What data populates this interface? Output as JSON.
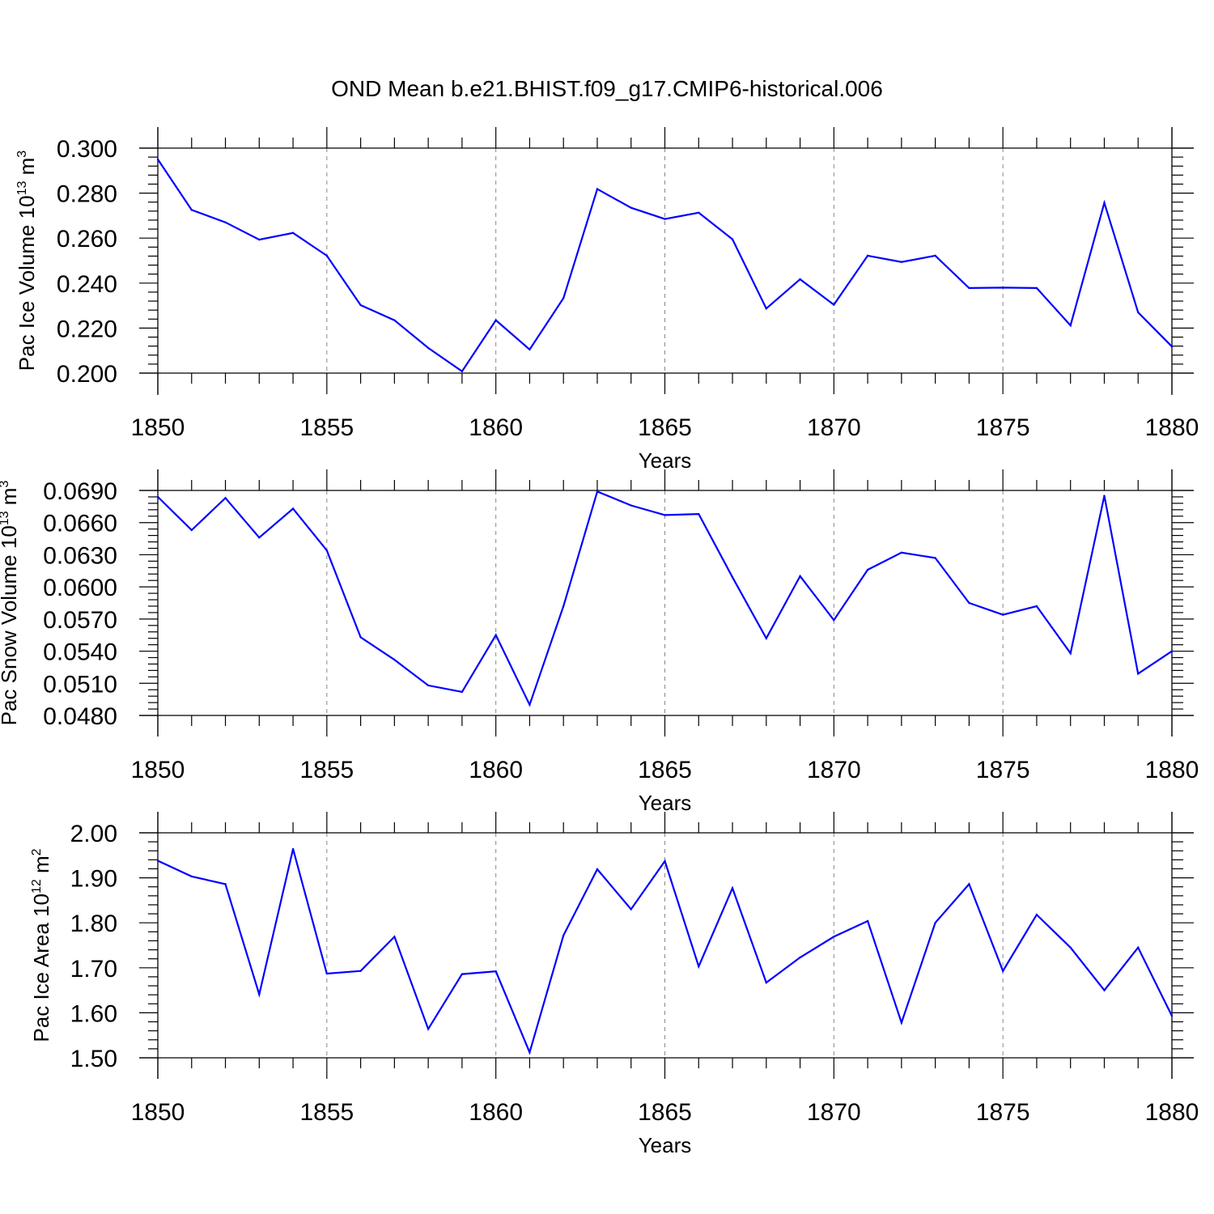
{
  "title": "OND Mean b.e21.BHIST.f09_g17.CMIP6-historical.006",
  "chart_data": [
    {
      "type": "line",
      "title": "OND Mean b.e21.BHIST.f09_g17.CMIP6-historical.006",
      "ylabel": "Pac Ice Volume 10",
      "ylabel_exp": "13",
      "ylabel_unit": " m",
      "ylabel_unit_exp": "3",
      "xlabel": "Years",
      "xlim": [
        1850,
        1880
      ],
      "ylim": [
        0.2,
        0.3
      ],
      "yticks": [
        "0.300",
        "0.280",
        "0.260",
        "0.240",
        "0.220",
        "0.200"
      ],
      "ytick_values": [
        0.3,
        0.28,
        0.26,
        0.24,
        0.22,
        0.2
      ],
      "xticks": [
        "1850",
        "1855",
        "1860",
        "1865",
        "1870",
        "1875",
        "1880"
      ],
      "xtick_values": [
        1850,
        1855,
        1860,
        1865,
        1870,
        1875,
        1880
      ],
      "color": "#0000ff",
      "x": [
        1850,
        1851,
        1852,
        1853,
        1854,
        1855,
        1856,
        1857,
        1858,
        1859,
        1860,
        1861,
        1862,
        1863,
        1864,
        1865,
        1866,
        1867,
        1868,
        1869,
        1870,
        1871,
        1872,
        1873,
        1874,
        1875,
        1876,
        1877,
        1878,
        1879,
        1880
      ],
      "values": [
        0.295,
        0.2725,
        0.267,
        0.2593,
        0.2623,
        0.2522,
        0.2302,
        0.2235,
        0.2112,
        0.2008,
        0.2235,
        0.2105,
        0.2333,
        0.2818,
        0.2735,
        0.2685,
        0.2713,
        0.2595,
        0.2287,
        0.2417,
        0.2304,
        0.2522,
        0.2494,
        0.2522,
        0.2378,
        0.238,
        0.2378,
        0.2212,
        0.2757,
        0.227,
        0.2118
      ]
    },
    {
      "type": "line",
      "ylabel": "Pac Snow Volume 10",
      "ylabel_exp": "13",
      "ylabel_unit": " m",
      "ylabel_unit_exp": "3",
      "xlabel": "Years",
      "xlim": [
        1850,
        1880
      ],
      "ylim": [
        0.048,
        0.069
      ],
      "yticks": [
        "0.0690",
        "0.0660",
        "0.0630",
        "0.0600",
        "0.0570",
        "0.0540",
        "0.0510",
        "0.0480"
      ],
      "ytick_values": [
        0.069,
        0.066,
        0.063,
        0.06,
        0.057,
        0.054,
        0.051,
        0.048
      ],
      "xticks": [
        "1850",
        "1855",
        "1860",
        "1865",
        "1870",
        "1875",
        "1880"
      ],
      "xtick_values": [
        1850,
        1855,
        1860,
        1865,
        1870,
        1875,
        1880
      ],
      "color": "#0000ff",
      "x": [
        1850,
        1851,
        1852,
        1853,
        1854,
        1855,
        1856,
        1857,
        1858,
        1859,
        1860,
        1861,
        1862,
        1863,
        1864,
        1865,
        1866,
        1867,
        1868,
        1869,
        1870,
        1871,
        1872,
        1873,
        1874,
        1875,
        1876,
        1877,
        1878,
        1879,
        1880
      ],
      "values": [
        0.0684,
        0.0653,
        0.0683,
        0.0646,
        0.0673,
        0.0634,
        0.0553,
        0.0532,
        0.0508,
        0.0502,
        0.0555,
        0.049,
        0.0582,
        0.0689,
        0.0676,
        0.0667,
        0.0668,
        0.0609,
        0.0552,
        0.061,
        0.0569,
        0.0616,
        0.0632,
        0.0627,
        0.0585,
        0.0574,
        0.0582,
        0.0538,
        0.0685,
        0.0519,
        0.054
      ]
    },
    {
      "type": "line",
      "ylabel": "Pac Ice Area 10",
      "ylabel_exp": "12",
      "ylabel_unit": " m",
      "ylabel_unit_exp": "2",
      "xlabel": "Years",
      "xlim": [
        1850,
        1880
      ],
      "ylim": [
        1.5,
        2.0
      ],
      "yticks": [
        "2.00",
        "1.90",
        "1.80",
        "1.70",
        "1.60",
        "1.50"
      ],
      "ytick_values": [
        2.0,
        1.9,
        1.8,
        1.7,
        1.6,
        1.5
      ],
      "xticks": [
        "1850",
        "1855",
        "1860",
        "1865",
        "1870",
        "1875",
        "1880"
      ],
      "xtick_values": [
        1850,
        1855,
        1860,
        1865,
        1870,
        1875,
        1880
      ],
      "color": "#0000ff",
      "x": [
        1850,
        1851,
        1852,
        1853,
        1854,
        1855,
        1856,
        1857,
        1858,
        1859,
        1860,
        1861,
        1862,
        1863,
        1864,
        1865,
        1866,
        1867,
        1868,
        1869,
        1870,
        1871,
        1872,
        1873,
        1874,
        1875,
        1876,
        1877,
        1878,
        1879,
        1880
      ],
      "values": [
        1.938,
        1.903,
        1.886,
        1.641,
        1.964,
        1.687,
        1.693,
        1.769,
        1.564,
        1.686,
        1.692,
        1.512,
        1.772,
        1.919,
        1.83,
        1.937,
        1.703,
        1.877,
        1.667,
        1.723,
        1.769,
        1.804,
        1.578,
        1.8,
        1.886,
        1.693,
        1.818,
        1.745,
        1.65,
        1.745,
        1.593
      ]
    }
  ]
}
